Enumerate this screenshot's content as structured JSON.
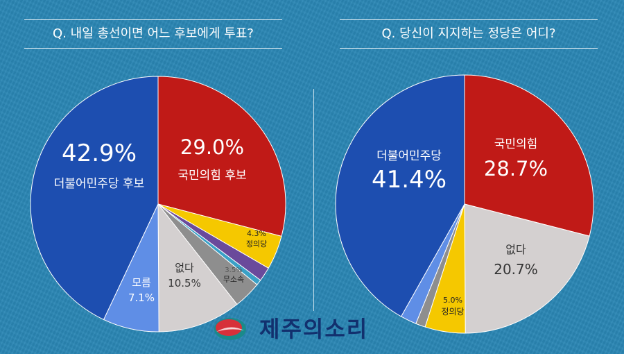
{
  "questions": {
    "left": "Q. 내일 총선이면 어느 후보에게 투표?",
    "right": "Q. 당신이 지지하는 정당은 어디?"
  },
  "logo": {
    "text": "제주의소리"
  },
  "chart_data": [
    {
      "type": "pie",
      "title": "Q. 내일 총선이면 어느 후보에게 투표?",
      "slices": [
        {
          "label": "국민의힘 후보",
          "value": 29.0,
          "color": "#c01a17"
        },
        {
          "label": "정의당",
          "value": 4.3,
          "color": "#f5c800"
        },
        {
          "label": "",
          "value": 1.8,
          "color": "#6a4a9b"
        },
        {
          "label": "",
          "value": 0.7,
          "color": "#3aa1c7"
        },
        {
          "label": "무소속",
          "value": 3.5,
          "color": "#8e8e8e"
        },
        {
          "label": "없다",
          "value": 10.5,
          "color": "#d4d0d0"
        },
        {
          "label": "모름",
          "value": 7.1,
          "color": "#5f8ee6"
        },
        {
          "label": "더불어민주당 후보",
          "value": 42.9,
          "color": "#1d4eb0"
        }
      ],
      "value_labels": [
        "29.0%",
        "4.3%",
        "",
        "",
        "3.5%",
        "10.5%",
        "7.1%",
        "42.9%"
      ]
    },
    {
      "type": "pie",
      "title": "Q. 당신이 지지하는 정당은 어디?",
      "slices": [
        {
          "label": "국민의힘",
          "value": 28.7,
          "color": "#c01a17"
        },
        {
          "label": "없다",
          "value": 20.7,
          "color": "#d4d0d0"
        },
        {
          "label": "정의당",
          "value": 5.0,
          "color": "#f5c800"
        },
        {
          "label": "",
          "value": 1.2,
          "color": "#8e8e8e"
        },
        {
          "label": "",
          "value": 2.0,
          "color": "#5f8ee6"
        },
        {
          "label": "더불어민주당",
          "value": 41.4,
          "color": "#1d4eb0"
        }
      ],
      "value_labels": [
        "28.7%",
        "20.7%",
        "5.0%",
        "",
        "",
        "41.4%"
      ]
    }
  ]
}
